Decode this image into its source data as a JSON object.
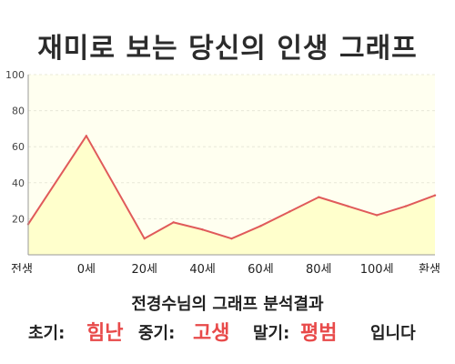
{
  "title": "재미로 보는 당신의 인생 그래프",
  "chart_data": {
    "type": "area",
    "y_ticks": [
      "100",
      "80",
      "60",
      "40",
      "20"
    ],
    "ylim": [
      0,
      100
    ],
    "x_tick_labels": [
      "전생",
      "0세",
      "20세",
      "40세",
      "60세",
      "80세",
      "100세",
      "환생"
    ],
    "points": [
      {
        "pos": 0,
        "value": 17
      },
      {
        "pos": 1,
        "value": 66
      },
      {
        "pos": 2,
        "value": 9
      },
      {
        "pos": 2.5,
        "value": 18
      },
      {
        "pos": 3,
        "value": 14
      },
      {
        "pos": 3.5,
        "value": 9
      },
      {
        "pos": 4,
        "value": 16
      },
      {
        "pos": 4.5,
        "value": 24
      },
      {
        "pos": 5,
        "value": 32
      },
      {
        "pos": 5.5,
        "value": 27
      },
      {
        "pos": 6,
        "value": 22
      },
      {
        "pos": 6.5,
        "value": 27
      },
      {
        "pos": 7,
        "value": 33
      }
    ],
    "grid": true,
    "colors": {
      "fill": "#ffffcc",
      "plot_bg": "#fffff0",
      "line": "#e05a5a",
      "grid": "#e8e8d8"
    }
  },
  "summary": {
    "title": "전경수님의 그래프 분석결과",
    "early_label": "초기:",
    "early_value": "힘난",
    "middle_label": "중기:",
    "middle_value": "고생",
    "late_label": "말기:",
    "late_value": "평범",
    "suffix": "입니다"
  }
}
